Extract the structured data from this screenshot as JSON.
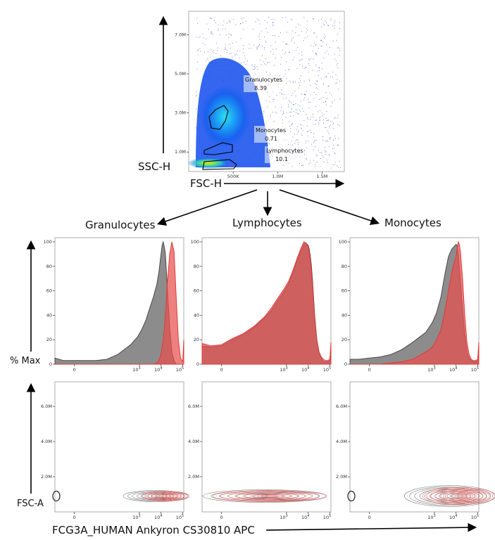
{
  "axis_labels": {
    "ssc_h": "SSC-H",
    "fsc_h": "FSC-H",
    "pct_max": "% Max",
    "fsc_a": "FSC-A",
    "apc": "FCG3A_HUMAN Ankyron CS30810 APC"
  },
  "population_titles": [
    "Granulocytes",
    "Lymphocytes",
    "Monocytes"
  ],
  "colors": {
    "control": "#7f7f7f",
    "stained": "#e8514f",
    "gate": "#000000"
  },
  "chart_data": [
    {
      "type": "scatter",
      "name": "FSC-H vs SSC-H density plot",
      "xlabel": "FSC-H",
      "ylabel": "SSC-H",
      "x_ticks": [
        "500K",
        "1.0M",
        "1.5M"
      ],
      "x_tick_values": [
        500000,
        1000000,
        1500000
      ],
      "y_ticks": [
        "1.0M",
        "3.0M",
        "5.0M",
        "7.0M"
      ],
      "y_tick_values": [
        1000000,
        3000000,
        5000000,
        7000000
      ],
      "xlim": [
        0,
        1750000
      ],
      "ylim": [
        0,
        8200000
      ],
      "gates": [
        {
          "name": "Granulocytes",
          "percent": "8.39"
        },
        {
          "name": "Monocytes",
          "percent": "0.71"
        },
        {
          "name": "Lymphocytes",
          "percent": "10.1"
        }
      ]
    },
    {
      "type": "area",
      "name": "Granulocytes histogram",
      "ylabel": "% Max",
      "y_ticks": [
        "0",
        "20",
        "40",
        "60",
        "80",
        "100"
      ],
      "ylim": [
        0,
        100
      ],
      "x_ticks": [
        "0",
        "10^3",
        "10^4",
        "10^5"
      ],
      "x_tick_values": [
        0,
        3,
        4,
        5
      ],
      "xlim": [
        -0.9,
        5.05
      ],
      "x": [
        -0.9,
        -0.5,
        0,
        0.5,
        1,
        1.5,
        2,
        2.3,
        2.6,
        2.9,
        3.1,
        3.3,
        3.5,
        3.65,
        3.8,
        3.9,
        4.0,
        4.05,
        4.1,
        4.15,
        4.2,
        4.3,
        4.4,
        4.5,
        4.6,
        4.7,
        4.8,
        4.9,
        5.0,
        5.05
      ],
      "series": [
        {
          "values": [
            5,
            3,
            3,
            3,
            3,
            4,
            8,
            12,
            16,
            22,
            28,
            36,
            47,
            55,
            65,
            75,
            90,
            97,
            100,
            96,
            90,
            60,
            30,
            10,
            3,
            0,
            0,
            0,
            0,
            0
          ]
        },
        {
          "values": [
            0,
            0,
            0,
            0,
            0,
            0,
            0,
            0,
            0,
            0,
            0,
            0,
            0,
            0,
            1,
            3,
            8,
            14,
            20,
            28,
            40,
            68,
            90,
            100,
            92,
            55,
            20,
            5,
            2,
            20
          ]
        }
      ]
    },
    {
      "type": "area",
      "name": "Lymphocytes histogram",
      "y_ticks": [
        "0",
        "20",
        "40",
        "60",
        "80",
        "100"
      ],
      "ylim": [
        0,
        100
      ],
      "x_ticks": [
        "0",
        "10^3",
        "10^4",
        "10^5"
      ],
      "x_tick_values": [
        0,
        3,
        4,
        5
      ],
      "xlim": [
        -0.9,
        5.05
      ],
      "x": [
        -0.9,
        -0.5,
        0,
        0.5,
        1,
        1.5,
        2,
        2.3,
        2.6,
        2.9,
        3.1,
        3.3,
        3.5,
        3.65,
        3.8,
        3.9,
        4.0,
        4.05,
        4.1,
        4.15,
        4.2,
        4.3,
        4.4,
        4.5,
        4.6,
        4.7,
        4.8,
        4.9,
        5.0,
        5.05
      ],
      "series": [
        {
          "values": [
            15,
            14,
            15,
            20,
            24,
            30,
            38,
            44,
            52,
            60,
            66,
            75,
            85,
            92,
            98,
            99,
            97,
            94,
            88,
            80,
            68,
            40,
            20,
            10,
            5,
            2,
            2,
            2,
            3,
            15
          ]
        },
        {
          "values": [
            17,
            15,
            16,
            21,
            25,
            31,
            39,
            46,
            54,
            62,
            68,
            77,
            87,
            94,
            100,
            99,
            96,
            92,
            85,
            76,
            64,
            38,
            19,
            10,
            6,
            4,
            3,
            3,
            4,
            18
          ]
        }
      ]
    },
    {
      "type": "area",
      "name": "Monocytes histogram",
      "y_ticks": [
        "0",
        "20",
        "40",
        "60",
        "80",
        "100"
      ],
      "ylim": [
        0,
        100
      ],
      "x_ticks": [
        "0",
        "10^3",
        "10^4",
        "10^5"
      ],
      "x_tick_values": [
        0,
        3,
        4,
        5
      ],
      "xlim": [
        -0.9,
        5.05
      ],
      "x": [
        -0.9,
        -0.5,
        0,
        0.5,
        1,
        1.5,
        2,
        2.3,
        2.6,
        2.9,
        3.1,
        3.3,
        3.5,
        3.65,
        3.8,
        3.9,
        4.0,
        4.05,
        4.1,
        4.15,
        4.2,
        4.3,
        4.4,
        4.5,
        4.6,
        4.7,
        4.8,
        4.9,
        5.0,
        5.05
      ],
      "series": [
        {
          "values": [
            4,
            4,
            5,
            6,
            8,
            12,
            18,
            22,
            26,
            34,
            42,
            55,
            75,
            88,
            94,
            96,
            98,
            97,
            90,
            80,
            68,
            45,
            25,
            10,
            5,
            3,
            2,
            2,
            3,
            15
          ]
        },
        {
          "values": [
            0,
            0,
            0,
            0,
            1,
            2,
            4,
            7,
            10,
            14,
            20,
            28,
            45,
            60,
            75,
            82,
            88,
            94,
            100,
            98,
            92,
            70,
            40,
            18,
            8,
            4,
            3,
            3,
            4,
            18
          ]
        }
      ]
    },
    {
      "type": "scatter",
      "name": "Granulocytes FSC-A contour",
      "y_ticks": [
        "2.0M",
        "4.0M",
        "6.0M"
      ],
      "y_tick_values": [
        2000000,
        4000000,
        6000000
      ],
      "ylim": [
        0,
        7400000
      ],
      "x_ticks": [
        "0",
        "10^3",
        "10^4",
        "10^5"
      ],
      "x_tick_values": [
        0,
        3,
        4,
        5
      ],
      "xlim": [
        -0.9,
        5.05
      ]
    },
    {
      "type": "scatter",
      "name": "Lymphocytes FSC-A contour",
      "y_ticks": [
        "2.0M",
        "4.0M",
        "6.0M"
      ],
      "y_tick_values": [
        2000000,
        4000000,
        6000000
      ],
      "ylim": [
        0,
        7400000
      ],
      "x_ticks": [
        "0",
        "10^3",
        "10^4",
        "10^5"
      ],
      "x_tick_values": [
        0,
        3,
        4,
        5
      ],
      "xlim": [
        -0.9,
        5.05
      ]
    },
    {
      "type": "scatter",
      "name": "Monocytes FSC-A contour",
      "y_ticks": [
        "2.0M",
        "4.0M",
        "6.0M"
      ],
      "y_tick_values": [
        2000000,
        4000000,
        6000000
      ],
      "ylim": [
        0,
        7400000
      ],
      "x_ticks": [
        "0",
        "10^3",
        "10^4",
        "10^5"
      ],
      "x_tick_values": [
        0,
        3,
        4,
        5
      ],
      "xlim": [
        -0.9,
        5.05
      ]
    }
  ]
}
